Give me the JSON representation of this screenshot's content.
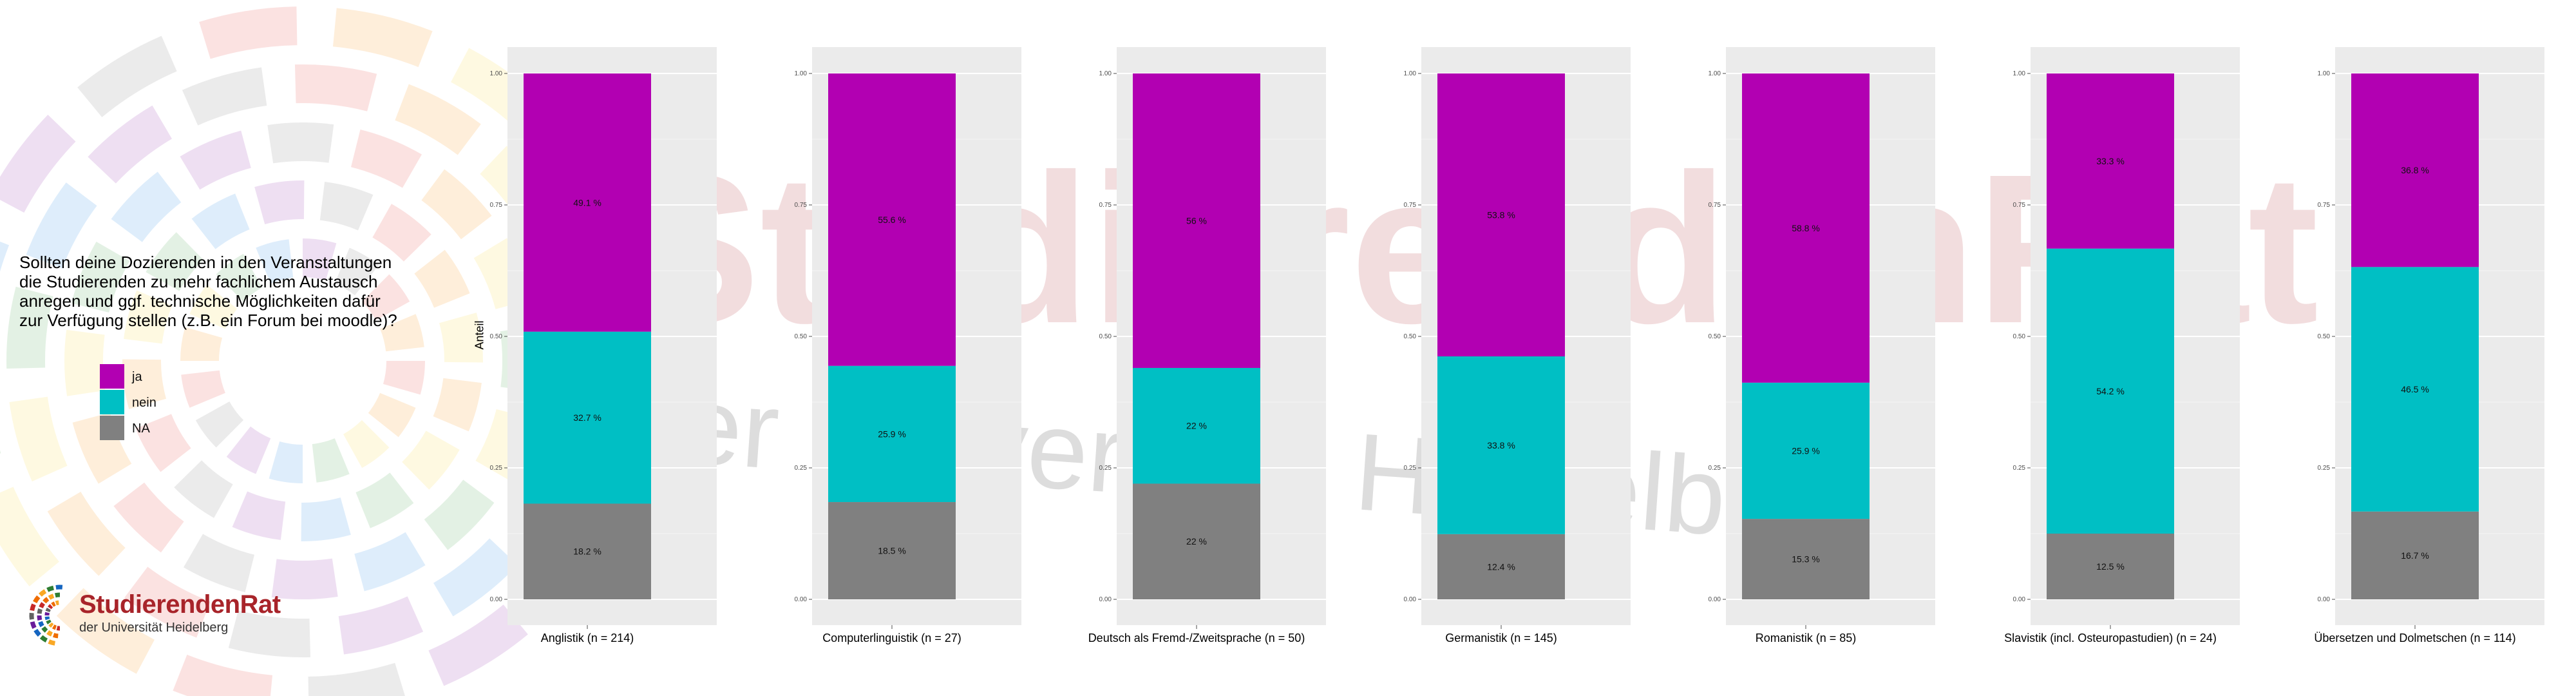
{
  "question": {
    "lines": [
      "Sollten deine Dozierenden in den Veranstaltungen",
      "die Studierenden zu mehr fachlichem Austausch",
      "anregen und ggf. technische Möglichkeiten dafür",
      "zur Verfügung stellen (z.B. ein Forum bei moodle)?"
    ]
  },
  "legend": {
    "items": [
      {
        "label": "ja",
        "color": "#b200b2"
      },
      {
        "label": "nein",
        "color": "#00bfc4"
      },
      {
        "label": "NA",
        "color": "#808080"
      }
    ]
  },
  "logo": {
    "title_a": "Studierenden",
    "title_b": "Rat",
    "subtitle": "der Universität Heidelberg"
  },
  "watermark": {
    "line1": "StudierendenRat",
    "line2": "der Universität Heidelberg"
  },
  "chart_data": {
    "type": "bar",
    "stacked": true,
    "ylabel": "Anteil",
    "ylim": [
      0,
      1
    ],
    "yticks": [
      "0.00",
      "0.25",
      "0.50",
      "0.75",
      "1.00"
    ],
    "yticks_values": [
      0,
      0.25,
      0.5,
      0.75,
      1
    ],
    "stack_order_bottom_to_top": [
      "NA",
      "nein",
      "ja"
    ],
    "colors": {
      "ja": "#b200b2",
      "nein": "#00bfc4",
      "NA": "#808080"
    },
    "panels": [
      {
        "category": "Anglistik (n = 214)",
        "NA": 0.182,
        "nein": 0.327,
        "ja": 0.491,
        "labels": {
          "NA": "18.2 %",
          "nein": "32.7 %",
          "ja": "49.1 %"
        }
      },
      {
        "category": "Computerlinguistik (n = 27)",
        "NA": 0.185,
        "nein": 0.259,
        "ja": 0.556,
        "labels": {
          "NA": "18.5 %",
          "nein": "25.9 %",
          "ja": "55.6 %"
        }
      },
      {
        "category": "Deutsch als Fremd-/Zweitsprache (n = 50)",
        "NA": 0.22,
        "nein": 0.22,
        "ja": 0.56,
        "labels": {
          "NA": "22 %",
          "nein": "22 %",
          "ja": "56 %"
        }
      },
      {
        "category": "Germanistik (n = 145)",
        "NA": 0.124,
        "nein": 0.338,
        "ja": 0.538,
        "labels": {
          "NA": "12.4 %",
          "nein": "33.8 %",
          "ja": "53.8 %"
        }
      },
      {
        "category": "Romanistik (n = 85)",
        "NA": 0.153,
        "nein": 0.259,
        "ja": 0.588,
        "labels": {
          "NA": "15.3 %",
          "nein": "25.9 %",
          "ja": "58.8 %"
        }
      },
      {
        "category": "Slavistik (incl. Osteuropastudien) (n = 24)",
        "NA": 0.125,
        "nein": 0.542,
        "ja": 0.333,
        "labels": {
          "NA": "12.5 %",
          "nein": "54.2 %",
          "ja": "33.3 %"
        }
      },
      {
        "category": "Übersetzen und Dolmetschen (n = 114)",
        "NA": 0.167,
        "nein": 0.465,
        "ja": 0.368,
        "labels": {
          "NA": "16.7 %",
          "nein": "46.5 %",
          "ja": "36.8 %"
        }
      }
    ]
  }
}
